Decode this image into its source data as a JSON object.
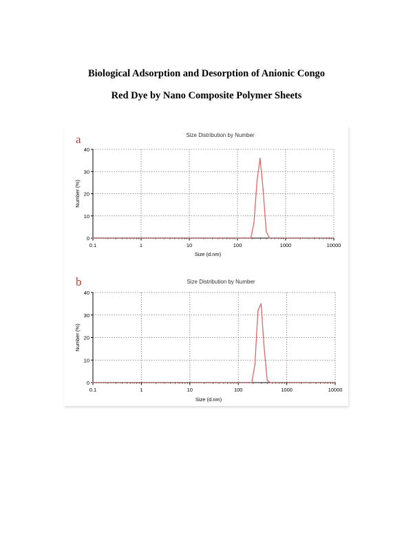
{
  "document": {
    "title_line1": "Biological Adsorption and Desorption of Anionic Congo",
    "title_line2": "Red Dye by Nano Composite Polymer Sheets"
  },
  "colors": {
    "curve": "#e06666",
    "axis": "#000000",
    "grid": "#555555",
    "letter": "#c0392b"
  },
  "chart_data": [
    {
      "type": "line",
      "panel_label": "a",
      "title": "Size Distribution by Number",
      "xlabel": "Size (d.nm)",
      "ylabel": "Number (%)",
      "xscale": "log",
      "xlim": [
        0.1,
        10000
      ],
      "ylim": [
        0,
        40
      ],
      "xticks": [
        0.1,
        1,
        10,
        100,
        1000,
        10000
      ],
      "xtick_labels": [
        "0.1",
        "1",
        "10",
        "100",
        "1000",
        "10000"
      ],
      "yticks": [
        0,
        10,
        20,
        30,
        40
      ],
      "ytick_labels": [
        "0",
        "10",
        "20",
        "30",
        "40"
      ],
      "grid": true,
      "series": [
        {
          "x": [
            190,
            220,
            255,
            295,
            340,
            395,
            460
          ],
          "y": [
            0,
            7,
            26,
            36,
            22,
            3,
            0
          ]
        }
      ]
    },
    {
      "type": "line",
      "panel_label": "b",
      "title": "Size Distribution by Number",
      "xlabel": "Size (d.nm)",
      "ylabel": "Number (%)",
      "xscale": "log",
      "xlim": [
        0.1,
        10000
      ],
      "ylim": [
        0,
        40
      ],
      "xticks": [
        0.1,
        1,
        10,
        100,
        1000,
        10000
      ],
      "xtick_labels": [
        "0.1",
        "1",
        "10",
        "100",
        "1000",
        "10000"
      ],
      "yticks": [
        0,
        10,
        20,
        30,
        40
      ],
      "ytick_labels": [
        "0",
        "10",
        "20",
        "30",
        "40"
      ],
      "grid": true,
      "series": [
        {
          "x": [
            190,
            220,
            255,
            295,
            340,
            395,
            460
          ],
          "y": [
            0,
            8,
            32,
            35,
            16,
            1,
            0
          ]
        }
      ]
    }
  ]
}
